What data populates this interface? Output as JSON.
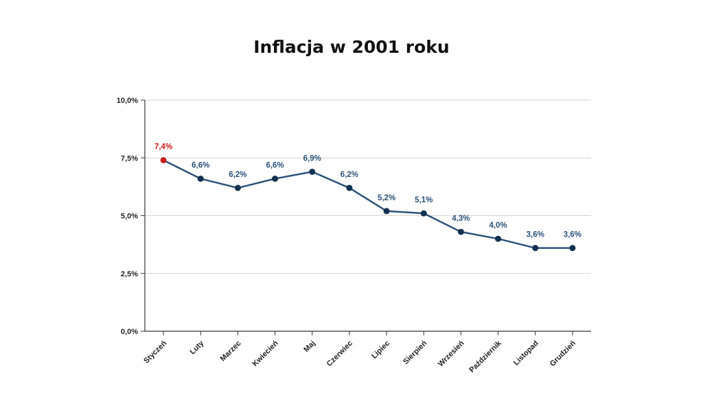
{
  "chart_data": {
    "type": "line",
    "title": "Inflacja w 2001 roku",
    "xlabel": "",
    "ylabel": "",
    "ylim": [
      0,
      10
    ],
    "yticks": [
      {
        "value": 0,
        "label": "0,0%"
      },
      {
        "value": 2.5,
        "label": "2,5%"
      },
      {
        "value": 5,
        "label": "5,0%"
      },
      {
        "value": 7.5,
        "label": "7,5%"
      },
      {
        "value": 10,
        "label": "10,0%"
      }
    ],
    "grid": true,
    "categories": [
      "Styczeń",
      "Luty",
      "Marzec",
      "Kwiecień",
      "Maj",
      "Czerwiec",
      "Lipiec",
      "Sierpień",
      "Wrzesień",
      "Październik",
      "Listopad",
      "Grudzień"
    ],
    "values": [
      7.4,
      6.6,
      6.2,
      6.6,
      6.9,
      6.2,
      5.2,
      5.1,
      4.3,
      4.0,
      3.6,
      3.6
    ],
    "data_labels": [
      "7,4%",
      "6,6%",
      "6,2%",
      "6,6%",
      "6,9%",
      "6,2%",
      "5,2%",
      "5,1%",
      "4,3%",
      "4,0%",
      "3,6%",
      "3,6%"
    ],
    "highlight_index": 0,
    "colors": {
      "line": "#2d5278",
      "marker": "#12304f",
      "label": "#2d5278",
      "highlight": "#c81e1e",
      "grid": "#d4d4d4",
      "axis": "#333333"
    }
  }
}
